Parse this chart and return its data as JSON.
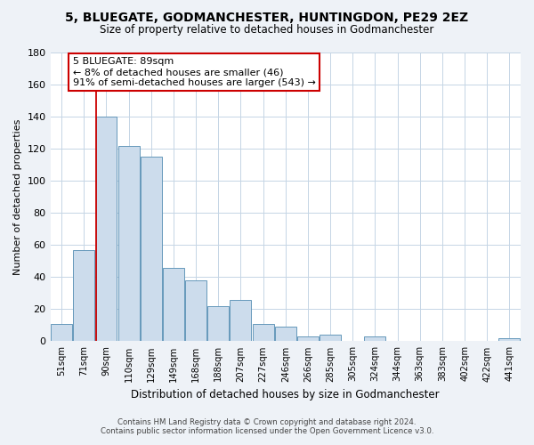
{
  "title": "5, BLUEGATE, GODMANCHESTER, HUNTINGDON, PE29 2EZ",
  "subtitle": "Size of property relative to detached houses in Godmanchester",
  "xlabel": "Distribution of detached houses by size in Godmanchester",
  "ylabel": "Number of detached properties",
  "bar_color": "#ccdcec",
  "bar_edge_color": "#6699bb",
  "categories": [
    "51sqm",
    "71sqm",
    "90sqm",
    "110sqm",
    "129sqm",
    "149sqm",
    "168sqm",
    "188sqm",
    "207sqm",
    "227sqm",
    "246sqm",
    "266sqm",
    "285sqm",
    "305sqm",
    "324sqm",
    "344sqm",
    "363sqm",
    "383sqm",
    "402sqm",
    "422sqm",
    "441sqm"
  ],
  "values": [
    11,
    57,
    140,
    122,
    115,
    46,
    38,
    22,
    26,
    11,
    9,
    3,
    4,
    0,
    3,
    0,
    0,
    0,
    0,
    0,
    2
  ],
  "ylim": [
    0,
    180
  ],
  "yticks": [
    0,
    20,
    40,
    60,
    80,
    100,
    120,
    140,
    160,
    180
  ],
  "property_line_index": 2,
  "property_line_color": "#cc0000",
  "ann_title": "5 BLUEGATE: 89sqm",
  "ann_line2": "← 8% of detached houses are smaller (46)",
  "ann_line3": "91% of semi-detached houses are larger (543) →",
  "annotation_box_color": "#cc0000",
  "footer_line1": "Contains HM Land Registry data © Crown copyright and database right 2024.",
  "footer_line2": "Contains public sector information licensed under the Open Government Licence v3.0.",
  "background_color": "#eef2f7",
  "plot_background_color": "#ffffff",
  "grid_color": "#c5d5e5"
}
